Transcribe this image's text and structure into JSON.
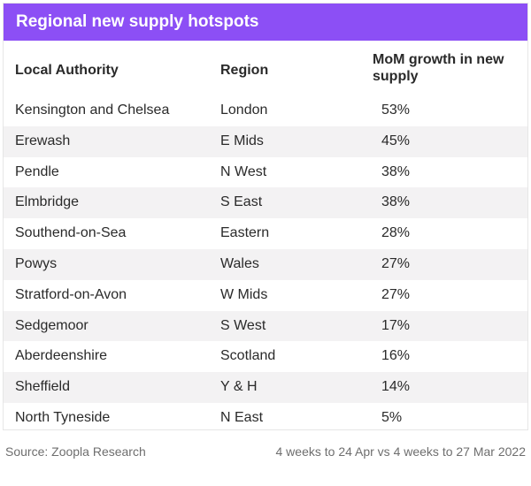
{
  "title": "Regional new supply hotspots",
  "columns": {
    "local_authority": "Local Authority",
    "region": "Region",
    "growth_line1": "MoM growth in new",
    "growth_line2": "supply"
  },
  "rows": [
    {
      "local_authority": "Kensington and Chelsea",
      "region": "London",
      "growth": "53%"
    },
    {
      "local_authority": "Erewash",
      "region": "E Mids",
      "growth": "45%"
    },
    {
      "local_authority": "Pendle",
      "region": "N West",
      "growth": "38%"
    },
    {
      "local_authority": "Elmbridge",
      "region": "S East",
      "growth": "38%"
    },
    {
      "local_authority": "Southend-on-Sea",
      "region": "Eastern",
      "growth": "28%"
    },
    {
      "local_authority": "Powys",
      "region": "Wales",
      "growth": "27%"
    },
    {
      "local_authority": "Stratford-on-Avon",
      "region": "W Mids",
      "growth": "27%"
    },
    {
      "local_authority": "Sedgemoor",
      "region": "S West",
      "growth": "17%"
    },
    {
      "local_authority": "Aberdeenshire",
      "region": "Scotland",
      "growth": "16%"
    },
    {
      "local_authority": "Sheffield",
      "region": "Y & H",
      "growth": "14%"
    },
    {
      "local_authority": "North Tyneside",
      "region": "N East",
      "growth": "5%"
    }
  ],
  "footer": {
    "source": "Source: Zoopla Research",
    "period": "4 weeks to 24 Apr vs 4 weeks to 27 Mar 2022"
  },
  "colors": {
    "title_bar": "#8c4ff5",
    "alt_row": "#f3f2f3"
  }
}
